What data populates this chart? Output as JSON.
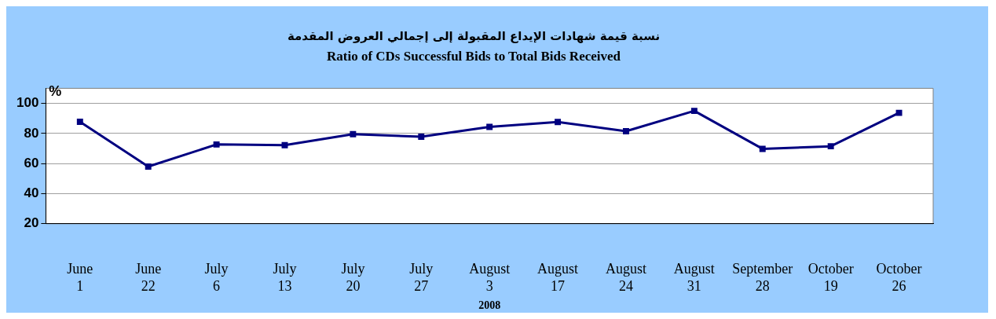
{
  "chart_data": {
    "type": "line",
    "title": "نسبة قيمة شهادات الإيداع المقبولة إلى إجمالي العروض المقدمة",
    "subtitle": "Ratio of CDs Successful Bids to Total Bids Received",
    "ylabel": "%",
    "categories": [
      "June 1",
      "June 22",
      "July 6",
      "July 13",
      "July 20",
      "July 27",
      "August 3",
      "August 17",
      "August 24",
      "August 31",
      "September 28",
      "October 19",
      "October 26"
    ],
    "series": [
      {
        "color": "#000080",
        "values": [
          87.8,
          58,
          72.7,
          72.2,
          79.5,
          77.8,
          84.4,
          87.6,
          81.5,
          95,
          69.8,
          71.5,
          93.7
        ]
      }
    ],
    "ylim": [
      20,
      110
    ],
    "yticks": [
      20,
      40,
      60,
      80,
      100
    ],
    "grid": "y",
    "legend": false,
    "marker": "square",
    "line_style": "solid",
    "annotations": [
      "2008"
    ]
  }
}
